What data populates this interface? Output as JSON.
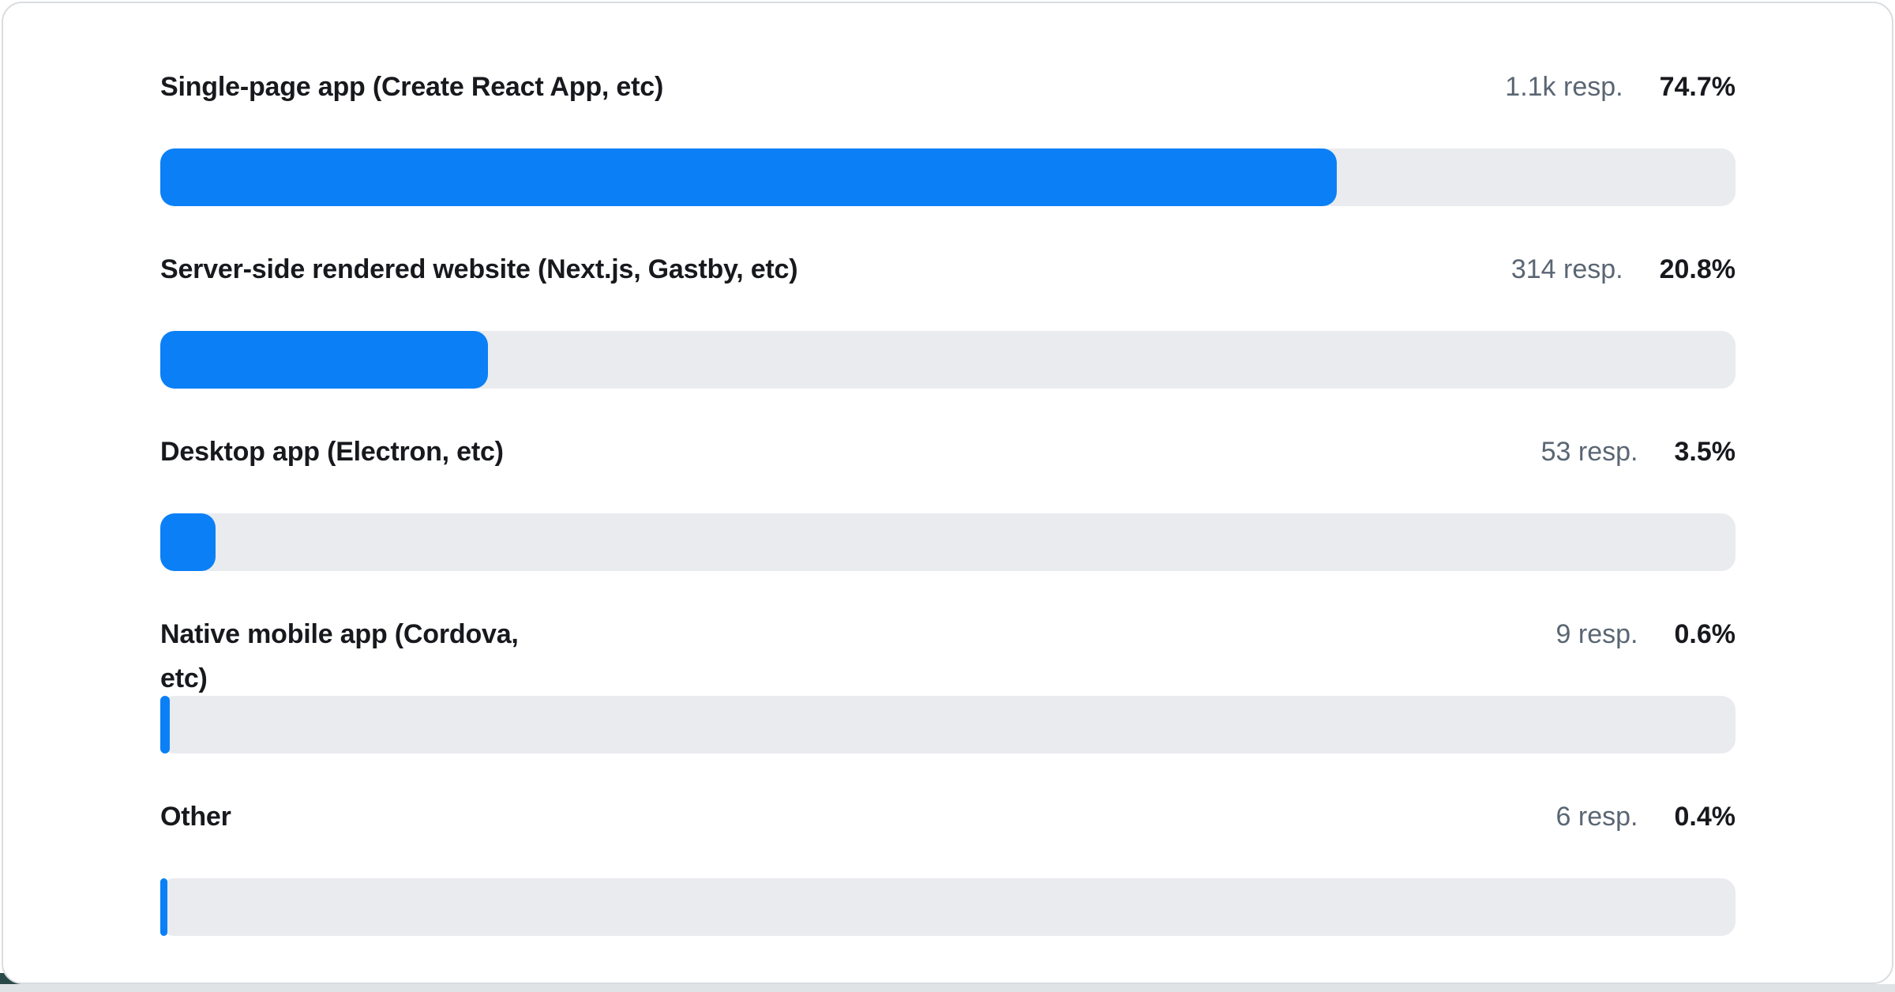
{
  "chart_data": {
    "type": "bar",
    "orientation": "horizontal",
    "unit": "percent",
    "xlim": [
      0,
      100
    ],
    "grid": false,
    "legend": false,
    "categories": [
      "Single-page app (Create React App, etc)",
      "Server-side rendered website (Next.js, Gastby, etc)",
      "Desktop app (Electron, etc)",
      "Native mobile app (Cordova,\netc)",
      "Other"
    ],
    "values": [
      74.7,
      20.8,
      3.5,
      0.6,
      0.4
    ],
    "value_labels": [
      "74.7%",
      "20.8%",
      "3.5%",
      "0.6%",
      "0.4%"
    ],
    "response_labels": [
      "1.1k resp.",
      "314 resp.",
      "53 resp.",
      "9 resp.",
      "6 resp."
    ],
    "rows": [
      {
        "label": "Single-page app (Create React App, etc)",
        "responses": "1.1k resp.",
        "percent_label": "74.7%",
        "percent": 74.7
      },
      {
        "label": "Server-side rendered website (Next.js, Gastby, etc)",
        "responses": "314 resp.",
        "percent_label": "20.8%",
        "percent": 20.8
      },
      {
        "label": "Desktop app (Electron, etc)",
        "responses": "53 resp.",
        "percent_label": "3.5%",
        "percent": 3.5
      },
      {
        "label": "Native mobile app (Cordova,\netc)",
        "responses": "9 resp.",
        "percent_label": "0.6%",
        "percent": 0.6
      },
      {
        "label": "Other",
        "responses": "6 resp.",
        "percent_label": "0.4%",
        "percent": 0.4
      }
    ]
  },
  "colors": {
    "bar_fill": "#0b80f6",
    "bar_track": "#e9ebef",
    "label_text": "#17191d",
    "resp_text": "#5a6673",
    "card_border": "#d9dce0",
    "bottom_strip": "#e0e3e6",
    "corner_accent": "#294a49"
  }
}
